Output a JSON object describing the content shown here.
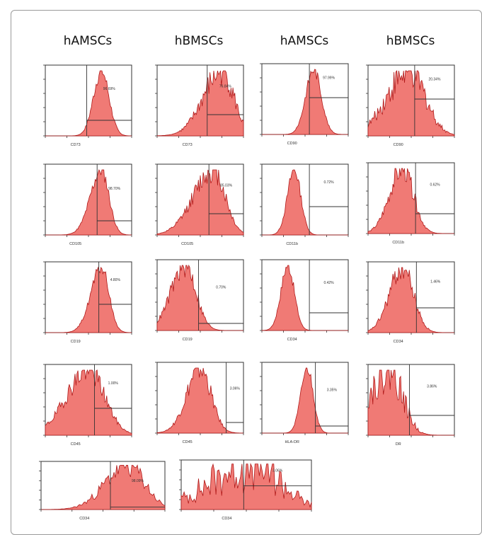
{
  "column_titles": [
    "hAMSCs",
    "hBMSCs",
    "hAMSCs",
    "hBMSCs"
  ],
  "colors": {
    "fill": "#f07a75",
    "stroke": "#b01818",
    "frame": "#333333",
    "gate": "#333333",
    "border": "#9a9a9a"
  },
  "chart_data": [
    {
      "type": "area",
      "marker": "CD73",
      "percent": "96.69%",
      "peak_decade": 2.6,
      "width": 0.35,
      "skew": 0.05,
      "noise": 0.12
    },
    {
      "type": "area",
      "marker": "CD73",
      "percent": "76.84%",
      "peak_decade": 3.0,
      "width": 0.55,
      "skew": 0.55,
      "noise": 0.25
    },
    {
      "type": "area",
      "marker": "CD90",
      "percent": "97.99%",
      "peak_decade": 2.4,
      "width": 0.35,
      "skew": 0.05,
      "noise": 0.1
    },
    {
      "type": "area",
      "marker": "CD90",
      "percent": "20.34%",
      "peak_decade": 1.9,
      "width": 0.75,
      "skew": 0.35,
      "noise": 0.3
    },
    {
      "type": "area",
      "marker": "CD105",
      "percent": "98.70%",
      "peak_decade": 2.6,
      "width": 0.35,
      "skew": 0.45,
      "noise": 0.12
    },
    {
      "type": "area",
      "marker": "CD105",
      "percent": "85.03%",
      "peak_decade": 2.6,
      "width": 0.55,
      "skew": 0.65,
      "noise": 0.2
    },
    {
      "type": "area",
      "marker": "CD11b",
      "percent": "0.72%",
      "peak_decade": 1.5,
      "width": 0.3,
      "skew": 0.05,
      "noise": 0.1
    },
    {
      "type": "area",
      "marker": "CD11b",
      "percent": "0.62%",
      "peak_decade": 1.6,
      "width": 0.5,
      "skew": 0.2,
      "noise": 0.2
    },
    {
      "type": "area",
      "marker": "CD19",
      "percent": "4.80%",
      "peak_decade": 2.6,
      "width": 0.35,
      "skew": 0.4,
      "noise": 0.1
    },
    {
      "type": "area",
      "marker": "CD19",
      "percent": "0.70%",
      "peak_decade": 1.3,
      "width": 0.5,
      "skew": 0.3,
      "noise": 0.2
    },
    {
      "type": "area",
      "marker": "CD34",
      "percent": "0.42%",
      "peak_decade": 1.2,
      "width": 0.3,
      "skew": 0.05,
      "noise": 0.1
    },
    {
      "type": "area",
      "marker": "CD34",
      "percent": "1.46%",
      "peak_decade": 1.6,
      "width": 0.5,
      "skew": 0.2,
      "noise": 0.2
    },
    {
      "type": "area",
      "marker": "CD45",
      "percent": "1.00%",
      "peak_decade": 2.0,
      "width": 0.75,
      "skew": 0.35,
      "noise": 0.2
    },
    {
      "type": "area",
      "marker": "CD45",
      "percent": "3.06%",
      "peak_decade": 2.0,
      "width": 0.5,
      "skew": 0.25,
      "noise": 0.2
    },
    {
      "type": "area",
      "marker": "HLA-DR",
      "percent": "3.35%",
      "peak_decade": 2.1,
      "width": 0.28,
      "skew": 0.05,
      "noise": 0.1
    },
    {
      "type": "area",
      "marker": "DR",
      "percent": "3.86%",
      "peak_decade": 1.0,
      "width": 0.6,
      "skew": 0.6,
      "noise": 0.35
    },
    {
      "type": "area",
      "marker": "CD34",
      "percent": "98.09%",
      "peak_decade": 2.8,
      "width": 0.55,
      "skew": 0.3,
      "noise": 0.3
    },
    {
      "type": "area",
      "marker": "CD34",
      "percent": "3.06%",
      "peak_decade": 2.2,
      "width": 0.85,
      "skew": 0.5,
      "noise": 0.65
    }
  ]
}
